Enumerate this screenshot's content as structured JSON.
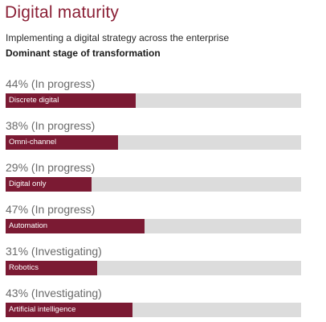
{
  "header": {
    "title": "Digital maturity",
    "subtitle": "Implementing a digital strategy across the enterprise",
    "section_label": "Dominant stage of transformation"
  },
  "colors": {
    "title": "#8a1f35",
    "bar_fill": "#7b1a33",
    "bar_track": "#dcdcdc"
  },
  "rows": [
    {
      "pct_label": "44% (In progress)",
      "bar_label": "Discrete digital",
      "value": 44
    },
    {
      "pct_label": "38% (In progress)",
      "bar_label": "Omni-channel",
      "value": 38
    },
    {
      "pct_label": "29% (In progress)",
      "bar_label": "Digital only",
      "value": 29
    },
    {
      "pct_label": "47% (In progress)",
      "bar_label": "Automation",
      "value": 47
    },
    {
      "pct_label": "31% (Investigating)",
      "bar_label": "Robotics",
      "value": 31
    },
    {
      "pct_label": "43% (Investigating)",
      "bar_label": "Artificial intelligence",
      "value": 43
    }
  ],
  "chart_data": {
    "type": "bar",
    "orientation": "horizontal",
    "title": "Digital maturity",
    "subtitle": "Implementing a digital strategy across the enterprise",
    "categories": [
      "Discrete digital",
      "Omni-channel",
      "Digital only",
      "Automation",
      "Robotics",
      "Artificial intelligence"
    ],
    "values": [
      44,
      38,
      29,
      47,
      31,
      43
    ],
    "stages": [
      "In progress",
      "In progress",
      "In progress",
      "In progress",
      "Investigating",
      "Investigating"
    ],
    "xlim": [
      0,
      100
    ],
    "grid": false,
    "legend": "none"
  }
}
